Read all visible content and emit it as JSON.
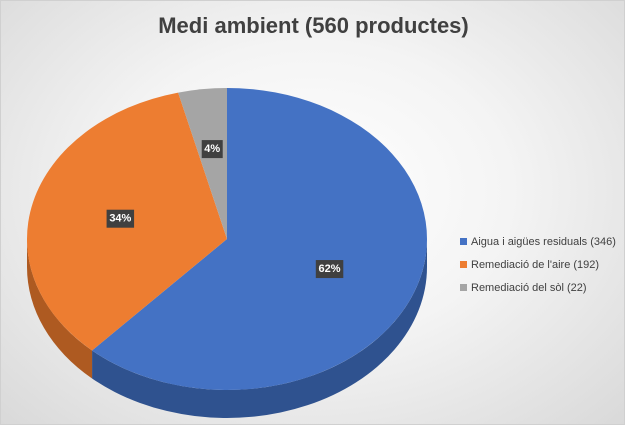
{
  "chart_data": {
    "type": "pie",
    "title": "Medi ambient (560 productes)",
    "slices": [
      {
        "label": "Aigua i aigües residuals (346)",
        "value": 346,
        "percent_label": "62%",
        "color": "#4472c4",
        "side_color": "#2f528f"
      },
      {
        "label": "Remediació de l'aire (192)",
        "value": 192,
        "percent_label": "34%",
        "color": "#ed7d31",
        "side_color": "#ae5a21"
      },
      {
        "label": "Remediació del sòl (22)",
        "value": 22,
        "percent_label": "4%",
        "color": "#a5a5a5",
        "side_color": "#7b7b7b"
      }
    ],
    "legend_position": "right",
    "style": "3d"
  }
}
